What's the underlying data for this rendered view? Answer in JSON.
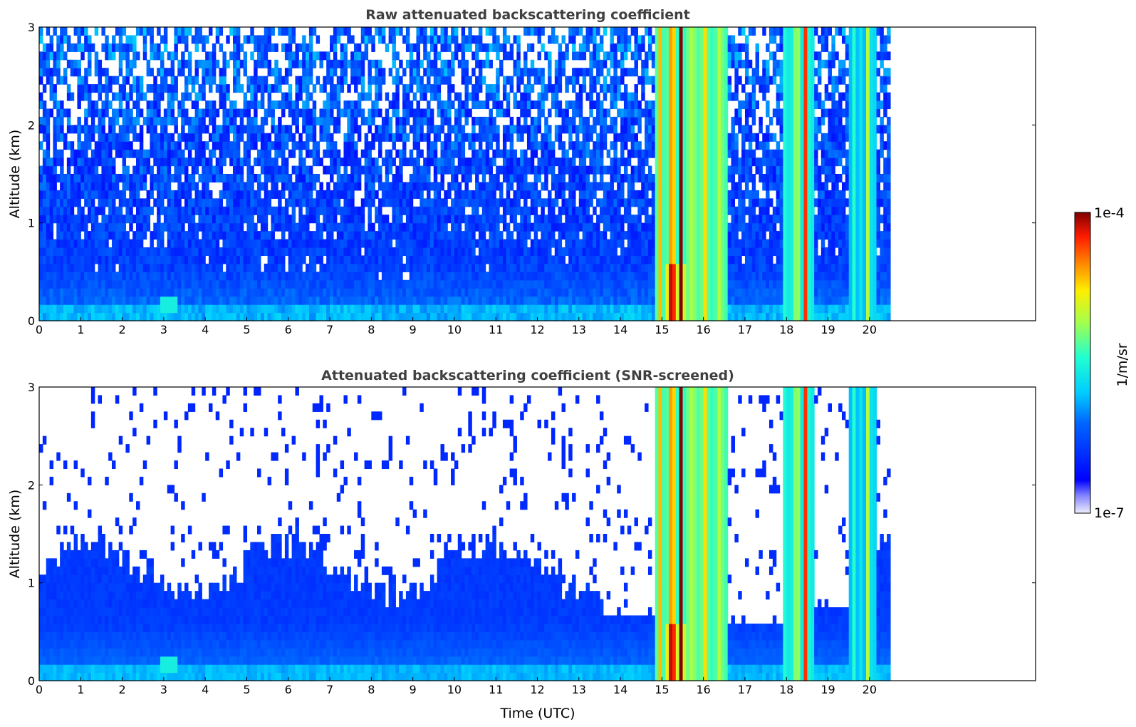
{
  "figure": {
    "xlabel": "Time (UTC)",
    "colorbar": {
      "label": "1/m/sr",
      "max_label": "1e-4",
      "min_label": "1e-7",
      "vmin": 1e-07,
      "vmax": 0.0001,
      "scale": "log",
      "colormap": "jet",
      "low_color": "#e8e8f8",
      "high_color": "#7f0000"
    }
  },
  "chart_data": [
    {
      "type": "heatmap",
      "title": "Raw attenuated backscattering coefficient",
      "xlabel": "",
      "ylabel": "Altitude (km)",
      "xlim": [
        0,
        24
      ],
      "ylim": [
        0,
        3
      ],
      "x_ticks": [
        "0",
        "1",
        "2",
        "3",
        "4",
        "5",
        "6",
        "7",
        "8",
        "9",
        "10",
        "11",
        "12",
        "13",
        "14",
        "15",
        "16",
        "17",
        "18",
        "19",
        "20"
      ],
      "y_ticks": [
        "0",
        "1",
        "2",
        "3"
      ],
      "data_extent_hours": [
        0,
        20.5
      ],
      "screened": false,
      "features": [
        {
          "description": "aerosol boundary layer",
          "time_range": [
            0,
            14.8
          ],
          "altitude_top_km": 1.4,
          "level": "low-moderate"
        },
        {
          "description": "precipitation/cloud columns",
          "time_range": [
            14.8,
            16.6
          ],
          "altitude_range_km": [
            0,
            3
          ],
          "level": "high"
        },
        {
          "description": "rain columns",
          "time_range": [
            17.9,
            18.7
          ],
          "altitude_range_km": [
            0,
            3
          ],
          "level": "high"
        },
        {
          "description": "rain columns",
          "time_range": [
            19.5,
            20.2
          ],
          "altitude_range_km": [
            0,
            3
          ],
          "level": "moderate-high"
        }
      ]
    },
    {
      "type": "heatmap",
      "title": "Attenuated backscattering coefficient (SNR-screened)",
      "xlabel": "Time (UTC)",
      "ylabel": "Altitude (km)",
      "xlim": [
        0,
        24
      ],
      "ylim": [
        0,
        3
      ],
      "x_ticks": [
        "0",
        "1",
        "2",
        "3",
        "4",
        "5",
        "6",
        "7",
        "8",
        "9",
        "10",
        "11",
        "12",
        "13",
        "14",
        "15",
        "16",
        "17",
        "18",
        "19",
        "20"
      ],
      "y_ticks": [
        "0",
        "1",
        "2",
        "3"
      ],
      "data_extent_hours": [
        0,
        20.5
      ],
      "screened": true,
      "features": [
        {
          "description": "aerosol boundary layer",
          "time_range": [
            0,
            14.8
          ],
          "altitude_top_km": 1.4,
          "level": "low-moderate"
        },
        {
          "description": "precipitation/cloud columns",
          "time_range": [
            14.8,
            16.6
          ],
          "altitude_range_km": [
            0,
            3
          ],
          "level": "high"
        },
        {
          "description": "rain columns",
          "time_range": [
            17.9,
            18.7
          ],
          "altitude_range_km": [
            0,
            3
          ],
          "level": "high"
        },
        {
          "description": "rain columns",
          "time_range": [
            19.5,
            20.2
          ],
          "altitude_range_km": [
            0,
            3
          ],
          "level": "moderate-high"
        }
      ]
    }
  ]
}
